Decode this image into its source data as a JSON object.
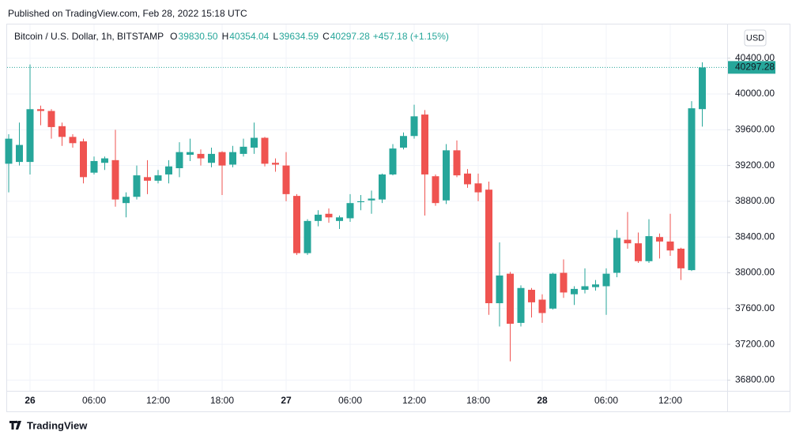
{
  "published": "Published on TradingView.com, Feb 28, 2022 15:18 UTC",
  "footer_brand": "TradingView",
  "currency_button": "USD",
  "chart_data": {
    "type": "candlestick",
    "title": "Bitcoin / U.S. Dollar, 1h, BITSTAMP",
    "legend": [
      {
        "key": "O",
        "value": "39830.50"
      },
      {
        "key": "H",
        "value": "40354.04"
      },
      {
        "key": "L",
        "value": "39634.59"
      },
      {
        "key": "C",
        "value": "40297.28"
      }
    ],
    "change": "+457.18 (+1.15%)",
    "up_color": "#26a69a",
    "down_color": "#ef5350",
    "categories": [
      null,
      null,
      "26",
      null,
      null,
      null,
      null,
      null,
      "06:00",
      null,
      null,
      null,
      null,
      null,
      "12:00",
      null,
      null,
      null,
      null,
      null,
      "18:00",
      null,
      null,
      null,
      null,
      null,
      "27",
      null,
      null,
      null,
      null,
      null,
      "06:00",
      null,
      null,
      null,
      null,
      null,
      "12:00",
      null,
      null,
      null,
      null,
      null,
      "18:00",
      null,
      null,
      null,
      null,
      null,
      "28",
      null,
      null,
      null,
      null,
      null,
      "06:00",
      null,
      null,
      null,
      null,
      null,
      "12:00",
      null,
      null,
      null
    ],
    "open": [
      39220,
      39240,
      39240,
      39830,
      39810,
      39640,
      39520,
      39470,
      39120,
      39230,
      39260,
      38780,
      38850,
      39070,
      39030,
      39100,
      39170,
      39320,
      39330,
      39230,
      39350,
      39210,
      39330,
      39400,
      39510,
      39230,
      39200,
      38860,
      38220,
      38580,
      38660,
      38580,
      38610,
      38790,
      38810,
      38820,
      39100,
      39400,
      39530,
      39770,
      39080,
      38810,
      39370,
      39110,
      39000,
      38930,
      37660,
      37990,
      37440,
      37810,
      37700,
      37600,
      38000,
      37760,
      37810,
      37840,
      37850,
      38000,
      38370,
      38330,
      38130,
      38400,
      38350,
      38270,
      38030,
      39830.5
    ],
    "high": [
      39550,
      39680,
      40330,
      39870,
      39830,
      39680,
      39550,
      39500,
      39300,
      39300,
      39600,
      38900,
      39200,
      39260,
      39150,
      39260,
      39460,
      39500,
      39380,
      39400,
      39360,
      39420,
      39500,
      39680,
      39520,
      39280,
      39350,
      38880,
      38600,
      38700,
      38720,
      38640,
      38880,
      38870,
      38920,
      39110,
      39440,
      39570,
      39880,
      39820,
      39100,
      39440,
      39480,
      39160,
      39110,
      39020,
      38340,
      38010,
      37860,
      37830,
      37760,
      38000,
      38150,
      37850,
      38050,
      37920,
      38050,
      38480,
      38680,
      38450,
      38600,
      38440,
      38660,
      38280,
      39920,
      40354.04
    ],
    "low": [
      38900,
      39200,
      39100,
      39650,
      39500,
      39420,
      39400,
      39000,
      39100,
      39150,
      38740,
      38620,
      38820,
      38880,
      39000,
      39000,
      39070,
      39250,
      39200,
      39180,
      38870,
      39180,
      39300,
      39330,
      39190,
      39130,
      38800,
      38200,
      38200,
      38520,
      38560,
      38490,
      38570,
      38700,
      38660,
      38780,
      39090,
      39380,
      39500,
      38640,
      38750,
      38770,
      39070,
      38950,
      38800,
      37530,
      37400,
      37010,
      37400,
      37500,
      37440,
      37590,
      37720,
      37640,
      37770,
      37800,
      37530,
      37950,
      38270,
      38110,
      38110,
      38160,
      38190,
      37920,
      38020,
      39634.59
    ],
    "close": [
      39500,
      39430,
      39830,
      39810,
      39630,
      39520,
      39450,
      39070,
      39250,
      39280,
      38820,
      38850,
      39090,
      39030,
      39090,
      39190,
      39350,
      39350,
      39280,
      39330,
      39200,
      39350,
      39410,
      39510,
      39220,
      39210,
      38880,
      38220,
      38580,
      38650,
      38620,
      38620,
      38780,
      38800,
      38830,
      39100,
      39390,
      39530,
      39750,
      39100,
      38780,
      39370,
      39090,
      38990,
      38900,
      37660,
      37970,
      37430,
      37830,
      37670,
      37550,
      37990,
      37780,
      37820,
      37850,
      37870,
      37990,
      38390,
      38330,
      38130,
      38410,
      38350,
      38250,
      38050,
      39840,
      40297.28
    ],
    "last_price": {
      "value": 40297.28,
      "label": "40297.28"
    },
    "ylim": [
      36680,
      40742
    ],
    "yticks": [
      {
        "value": 36800,
        "label": "36800.00"
      },
      {
        "value": 37200,
        "label": "37200.00"
      },
      {
        "value": 37600,
        "label": "37600.00"
      },
      {
        "value": 38000,
        "label": "38000.00"
      },
      {
        "value": 38400,
        "label": "38400.00"
      },
      {
        "value": 38800,
        "label": "38800.00"
      },
      {
        "value": 39200,
        "label": "39200.00"
      },
      {
        "value": 39600,
        "label": "39600.00"
      },
      {
        "value": 40000,
        "label": "40000.00"
      },
      {
        "value": 40400,
        "label": "40400.00"
      }
    ],
    "grid": true
  }
}
